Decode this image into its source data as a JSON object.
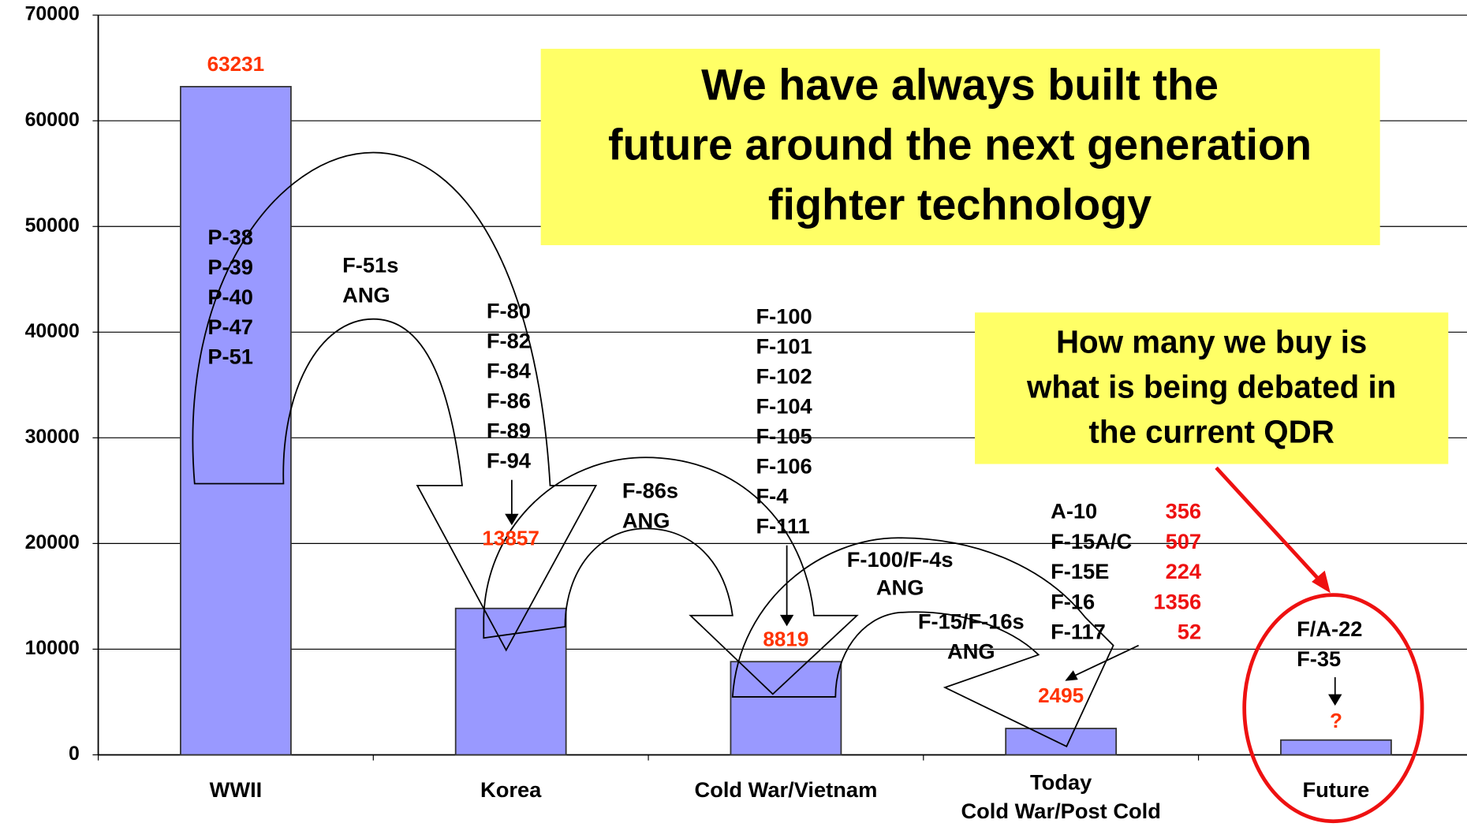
{
  "chart_data": {
    "type": "bar",
    "categories": [
      [
        "WWII"
      ],
      [
        "Korea"
      ],
      [
        "Cold War/Vietnam"
      ],
      [
        "Today",
        "Cold War/Post Cold"
      ],
      [
        "Future"
      ]
    ],
    "values": [
      63231,
      13857,
      8819,
      2495,
      1400
    ],
    "value_labels": [
      "63231",
      "13857",
      "8819",
      "2495",
      "?"
    ],
    "color": "#9999ff",
    "label_color": "#ff3300",
    "ylim": [
      0,
      70000
    ],
    "yticks": [
      0,
      10000,
      20000,
      30000,
      40000,
      50000,
      60000,
      70000
    ],
    "grid": true,
    "headline": [
      "We have always built the",
      "future around the next generation",
      "fighter technology"
    ],
    "note": [
      "How many we buy is",
      "what is being debated in",
      "the current QDR"
    ],
    "callouts": [
      [
        "P-38",
        "P-39",
        "P-40",
        "P-47",
        "P-51"
      ],
      [
        "F-51s",
        "ANG"
      ],
      [
        "F-80",
        "F-82",
        "F-84",
        "F-86",
        "F-89",
        "F-94"
      ],
      [
        "F-86s",
        "ANG"
      ],
      [
        "F-100",
        "F-101",
        "F-102",
        "F-104",
        "F-105",
        "F-106",
        "F-4",
        "F-111"
      ],
      [
        "F-100/F-4s",
        "ANG"
      ],
      [
        "F-15/F-16s",
        "ANG"
      ],
      [
        "F/A-22",
        "F-35"
      ]
    ],
    "fleet": {
      "names": [
        "A-10",
        "F-15A/C",
        "F-15E",
        "F-16",
        "F-117"
      ],
      "counts": [
        356,
        507,
        224,
        1356,
        52
      ]
    }
  }
}
